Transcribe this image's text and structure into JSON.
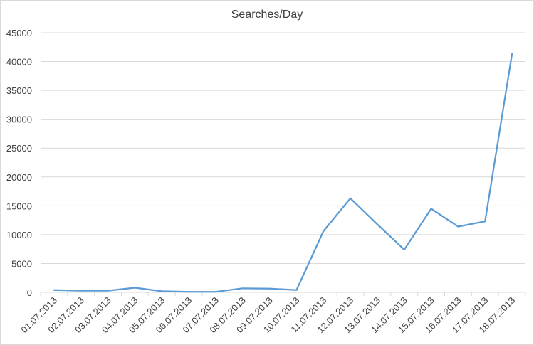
{
  "chart_data": {
    "type": "line",
    "title": "Searches/Day",
    "xlabel": "",
    "ylabel": "",
    "categories": [
      "01.07.2013",
      "02.07.2013",
      "03.07.2013",
      "04.07.2013",
      "05.07.2013",
      "06.07.2013",
      "07.07.2013",
      "08.07.2013",
      "09.07.2013",
      "10.07.2013",
      "11.07.2013",
      "12.07.2013",
      "13.07.2013",
      "14.07.2013",
      "15.07.2013",
      "16.07.2013",
      "17.07.2013",
      "18.07.2013"
    ],
    "series": [
      {
        "values": [
          400,
          300,
          300,
          800,
          200,
          100,
          100,
          700,
          650,
          400,
          10600,
          16300,
          11800,
          7400,
          14500,
          11400,
          12300,
          41300
        ],
        "color": "#5b9bd5"
      }
    ],
    "ylim": [
      0,
      45000
    ],
    "yticks": [
      0,
      5000,
      10000,
      15000,
      20000,
      25000,
      30000,
      35000,
      40000,
      45000
    ],
    "grid": true,
    "legend": "none",
    "colors": {
      "line": "#5b9bd5",
      "grid": "#d9d9d9",
      "text": "#404040"
    }
  }
}
